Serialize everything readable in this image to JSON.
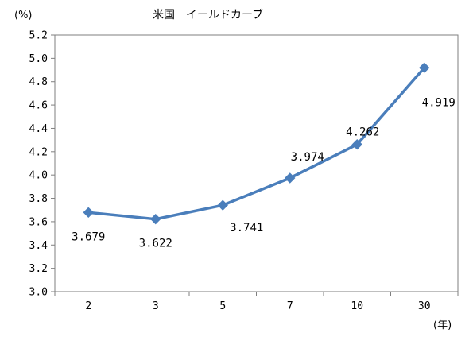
{
  "chart_data": {
    "type": "line",
    "title": "米国　イールドカーブ",
    "ylabel": "(%)",
    "xlabel": "(年)",
    "categories": [
      "2",
      "3",
      "5",
      "7",
      "10",
      "30"
    ],
    "series": [
      {
        "values": [
          3.679,
          3.622,
          3.741,
          3.974,
          4.262,
          4.919
        ],
        "labels": [
          "3.679",
          "3.622",
          "3.741",
          "3.974",
          "4.262",
          "4.919"
        ],
        "color": "#4a7ebb"
      }
    ],
    "ylim": [
      3.0,
      5.2
    ],
    "yticks": [
      "3.0",
      "3.2",
      "3.4",
      "3.6",
      "3.8",
      "4.0",
      "4.2",
      "4.4",
      "4.6",
      "4.8",
      "5.0",
      "5.2"
    ],
    "grid": false,
    "legend": "none"
  }
}
